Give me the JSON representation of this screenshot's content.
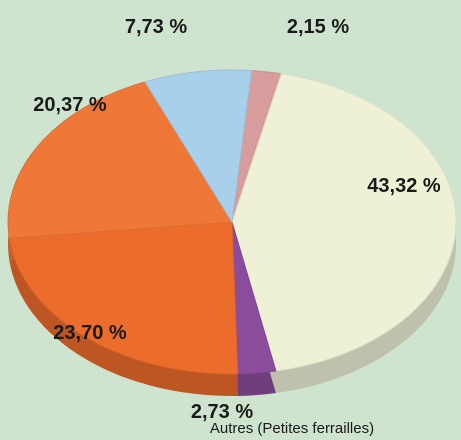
{
  "chart_data": {
    "type": "pie",
    "categories": [
      null,
      null,
      "Autres (Petites ferrailles)",
      null,
      null,
      null
    ],
    "values": [
      2.15,
      43.32,
      2.73,
      23.7,
      20.37,
      7.73
    ],
    "value_labels": [
      "2,15 %",
      "43,32 %",
      "2,73 %",
      "23,70 %",
      "20,37 %",
      "7,73 %"
    ],
    "colors": [
      "#d99c9c",
      "#eef1d6",
      "#8c4c9c",
      "#ec6c2c",
      "#ef7838",
      "#a9d0ea"
    ]
  }
}
